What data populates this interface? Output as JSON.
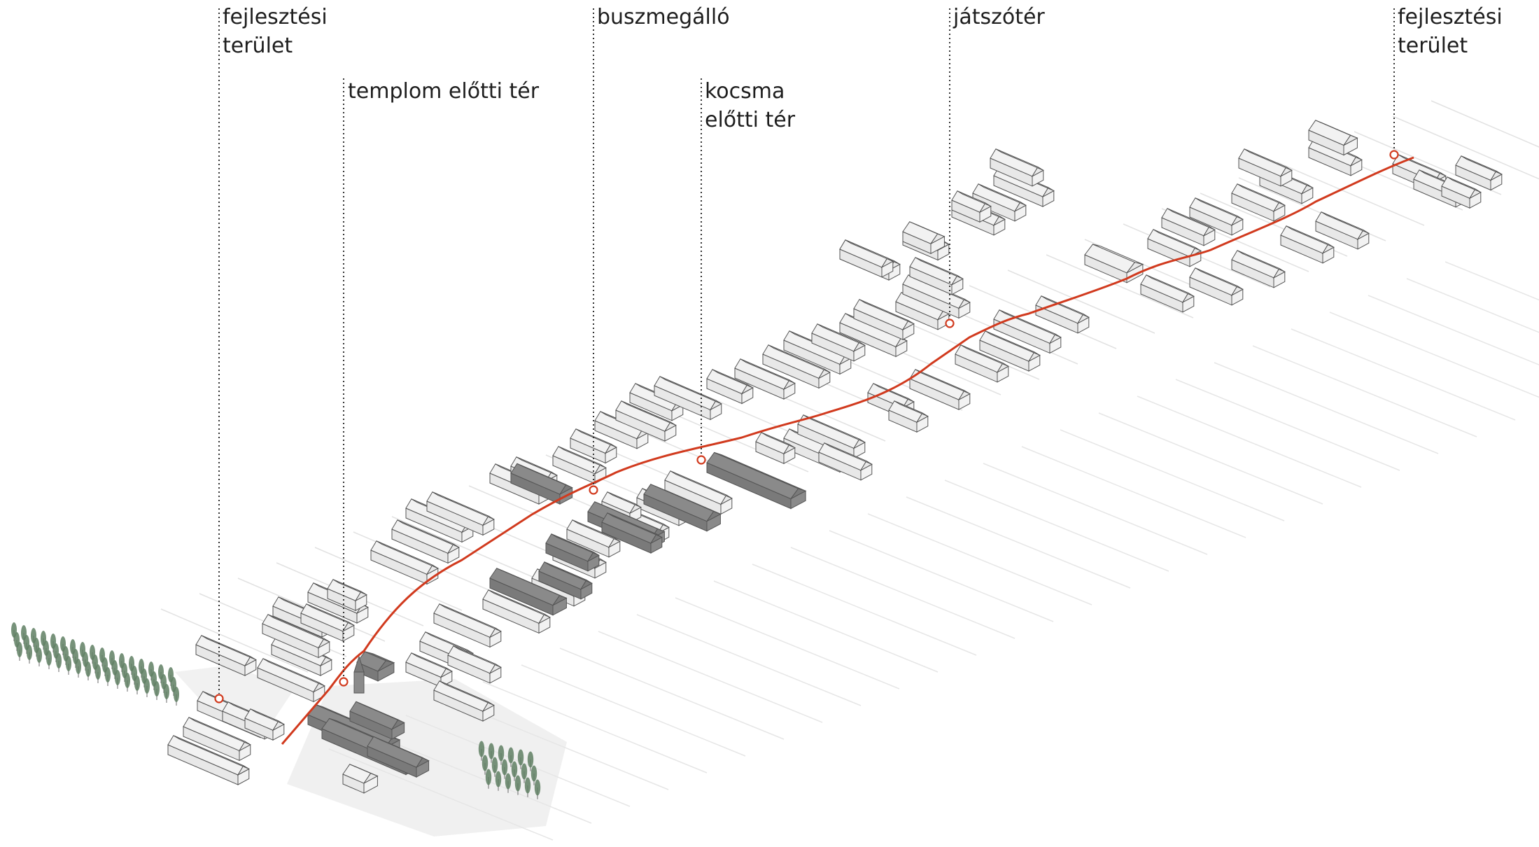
{
  "labels": [
    {
      "id": "dev-area-west",
      "lines": [
        "fejlesztési",
        "terület"
      ]
    },
    {
      "id": "church-square",
      "lines": [
        "templom előtti tér"
      ]
    },
    {
      "id": "bus-stop",
      "lines": [
        "buszmegálló"
      ]
    },
    {
      "id": "pub-square",
      "lines": [
        "kocsma",
        "előtti tér"
      ]
    },
    {
      "id": "playground",
      "lines": [
        "játszótér"
      ]
    },
    {
      "id": "dev-area-east",
      "lines": [
        "fejlesztési",
        "terület"
      ]
    }
  ],
  "colors": {
    "road": "#d13a1e",
    "marker": "#d13a1e",
    "leader": "#333333",
    "building_light": "#f2f2f2",
    "building_dark": "#8a8a8a",
    "building_stroke": "#555555",
    "ground": "#e6e6e6",
    "tree": "#5f7f63"
  }
}
